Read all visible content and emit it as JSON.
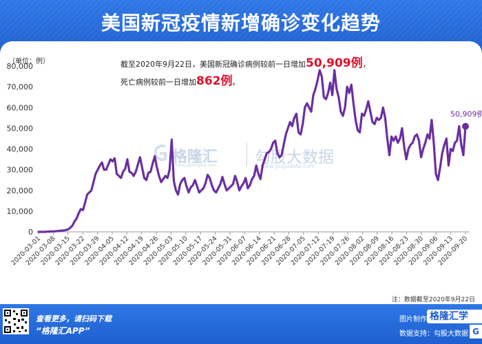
{
  "title": "美国新冠疫情新增确诊变化趋势",
  "unit_label": "（单位：例）",
  "annotation": {
    "line1_prefix": "截至2020年9月22日，美国新冠确诊病例较前一日增加",
    "line1_value": "50,909例",
    "line1_suffix": "，",
    "line2_prefix": "死亡病例较前一日增加",
    "line2_value": "862例",
    "line2_suffix": "。"
  },
  "last_point_label": "50,909例",
  "watermark": {
    "brand": "格隆汇",
    "brand_url": "www.gelonghui.com",
    "brand2": "勾股大数据",
    "brand2_url": "www.gogudata.com"
  },
  "note": "注：数据截至2020年9月22日",
  "footer": {
    "left_line1": "查看更多，请扫码下载",
    "left_line2": "“格隆汇APP”",
    "right_line1_prefix": "图片制作：",
    "right_line1_brand": "格隆汇学",
    "right_line2": "数据支持：勾股大数据 Win",
    "right_badge": "G"
  },
  "colors": {
    "header": "#2468dc",
    "line": "#6a2fa0",
    "highlight": "#e0102a"
  },
  "chart_data": {
    "type": "line",
    "title": "",
    "xlabel": "",
    "ylabel": "",
    "ylim": [
      0,
      80000
    ],
    "yticks": [
      0,
      10000,
      20000,
      30000,
      40000,
      50000,
      60000,
      70000,
      80000
    ],
    "ytick_labels": [
      "0",
      "10,000",
      "20,000",
      "30,000",
      "40,000",
      "50,000",
      "60,000",
      "70,000",
      "80,000"
    ],
    "xtick_labels": [
      "2020-03-01",
      "2020-03-08",
      "2020-03-15",
      "2020-03-22",
      "2020-03-29",
      "2020-04-05",
      "2020-04-12",
      "2020-04-19",
      "2020-04-26",
      "2020-05-03",
      "2020-05-10",
      "2020-05-17",
      "2020-05-24",
      "2020-05-31",
      "2020-06-07",
      "2020-06-14",
      "2020-06-21",
      "2020-06-28",
      "2020-07-05",
      "2020-07-12",
      "2020-07-19",
      "2020-07-26",
      "2020-08-02",
      "2020-08-09",
      "2020-08-16",
      "2020-08-23",
      "2020-08-30",
      "2020-09-06",
      "2020-09-13",
      "2020-09-20"
    ],
    "start_date": "2020-03-01",
    "series": [
      {
        "values": [
          0,
          0,
          0,
          0,
          100,
          100,
          200,
          200,
          300,
          400,
          500,
          600,
          700,
          900,
          1200,
          2000,
          3000,
          5000,
          6500,
          9000,
          11000,
          10500,
          14000,
          18000,
          19000,
          20000,
          24000,
          28000,
          30000,
          32000,
          33500,
          30000,
          30000,
          32500,
          35000,
          34000,
          35500,
          28000,
          27000,
          26000,
          29000,
          30500,
          35000,
          29000,
          28500,
          27000,
          29000,
          32500,
          36000,
          31000,
          26000,
          25000,
          28500,
          29000,
          33000,
          36500,
          31000,
          27000,
          24000,
          25500,
          27000,
          26000,
          30000,
          44500,
          24500,
          20000,
          18000,
          23000,
          25000,
          26000,
          22000,
          19000,
          21500,
          22500,
          25000,
          22000,
          19000,
          20000,
          21000,
          23500,
          27500,
          26000,
          22500,
          20000,
          19000,
          21000,
          23000,
          26500,
          23000,
          20000,
          21000,
          22000,
          23000,
          27000,
          24000,
          20000,
          22000,
          23500,
          26000,
          21000,
          22500,
          25500,
          27000,
          32000,
          28000,
          25500,
          32000,
          35000,
          38000,
          38500,
          40000,
          43000,
          44000,
          38000,
          36000,
          37000,
          42000,
          47000,
          50000,
          53000,
          51000,
          55000,
          57000,
          48000,
          47000,
          52000,
          60000,
          62000,
          60000,
          58000,
          66000,
          69000,
          73000,
          78000,
          75000,
          65000,
          64000,
          67000,
          72000,
          66000,
          78000,
          69000,
          65000,
          58000,
          56000,
          60000,
          70000,
          67000,
          71000,
          62000,
          54000,
          49000,
          48000,
          57000,
          56000,
          59000,
          63000,
          58000,
          53000,
          52000,
          55000,
          54000,
          55000,
          60000,
          55000,
          45000,
          37000,
          46000,
          44000,
          46000,
          43000,
          45000,
          50000,
          41000,
          35000,
          40000,
          42000,
          43000,
          46000,
          47000,
          44000,
          36000,
          40000,
          43000,
          47000,
          45000,
          54000,
          43000,
          28000,
          25000,
          31000,
          38000,
          42000,
          45000,
          32000,
          40000,
          39000,
          43000,
          44000,
          51000,
          42000,
          37000,
          50909
        ]
      }
    ]
  }
}
